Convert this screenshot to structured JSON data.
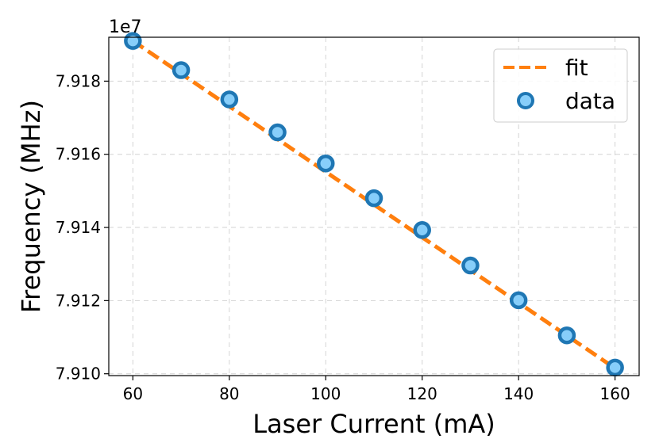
{
  "chart_data": {
    "type": "scatter",
    "xlabel": "Laser Current (mA)",
    "ylabel": "Frequency (MHz)",
    "offset_label": "1e7",
    "xlim": [
      55,
      165
    ],
    "ylim": [
      79099500,
      79192000
    ],
    "x_ticks": [
      60,
      80,
      100,
      120,
      140,
      160
    ],
    "y_ticks": [
      79100000,
      79120000,
      79140000,
      79160000,
      79180000
    ],
    "y_tick_labels": [
      "7.910",
      "7.912",
      "7.914",
      "7.916",
      "7.918"
    ],
    "grid": true,
    "legend_position": "top-right",
    "series": [
      {
        "name": "fit",
        "kind": "line",
        "style": "dashed",
        "color": "#ff7f0e",
        "x": [
          60,
          160
        ],
        "y": [
          79191000,
          79101500
        ]
      },
      {
        "name": "data",
        "kind": "scatter",
        "color": "#1f77b4",
        "fill": "#87cefa",
        "x": [
          60,
          70,
          80,
          90,
          100,
          110,
          120,
          130,
          140,
          150,
          160
        ],
        "y": [
          79191000,
          79183000,
          79175000,
          79166000,
          79157500,
          79148000,
          79139300,
          79129600,
          79120100,
          79110500,
          79101700
        ]
      }
    ]
  }
}
